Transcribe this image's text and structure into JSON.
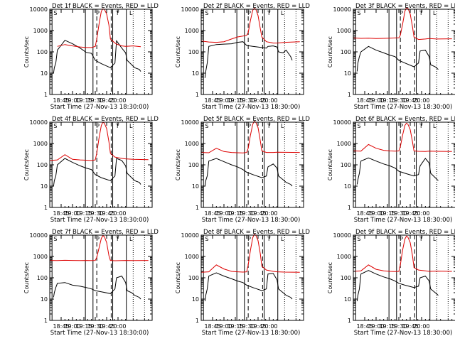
{
  "figure": {
    "xlabel_template": "Start Time (27-Nov-13 18:30:00)",
    "ylabel": "Counts/sec",
    "colors": {
      "events": "#000000",
      "lld": "#dd0000",
      "axes": "#000000"
    }
  },
  "chart_data": [
    {
      "type": "line",
      "title": "Det 1f BLACK = Events, RED = LLD",
      "letters": "S P T L",
      "xlabel": "Start Time (27-Nov-13 18:30:00)",
      "ylabel": "Counts/sec",
      "yscale": "log",
      "ylim": [
        1,
        10000
      ],
      "xticks": [
        "18:45",
        "19:00",
        "19:15",
        "19:30",
        "19:45",
        "20:00"
      ],
      "yticks": [
        "1",
        "10",
        "100",
        "1000",
        "10000"
      ],
      "series": [
        {
          "name": "Events",
          "color": "#000000",
          "x": [
            5,
            6,
            8,
            10,
            20,
            30,
            40,
            48,
            55,
            60,
            68,
            80,
            86,
            88,
            95,
            100,
            102,
            108,
            112,
            118,
            120
          ],
          "values": [
            10,
            18,
            30,
            120,
            350,
            240,
            150,
            95,
            85,
            40,
            28,
            18,
            30,
            330,
            150,
            90,
            40,
            25,
            18,
            15,
            12
          ]
        },
        {
          "name": "LLD",
          "color": "#dd0000",
          "x": [
            10,
            20,
            30,
            40,
            48,
            55,
            60,
            62,
            65,
            68,
            70,
            72,
            75,
            78,
            80,
            86,
            88,
            95,
            100,
            110,
            120
          ],
          "values": [
            180,
            220,
            190,
            170,
            160,
            160,
            180,
            400,
            2000,
            8000,
            10500,
            10000,
            6000,
            1800,
            400,
            260,
            230,
            190,
            180,
            190,
            175
          ]
        }
      ]
    },
    {
      "type": "line",
      "title": "Det 2f BLACK = Events, RED = LLD",
      "letters": "S P T L",
      "xlabel": "Start Time (27-Nov-13 18:30:00)",
      "ylabel": "Counts/sec",
      "yscale": "log",
      "ylim": [
        1,
        10000
      ],
      "xticks": [
        "18:45",
        "19:00",
        "19:15",
        "19:30",
        "19:45",
        "20:00"
      ],
      "yticks": [
        "1",
        "10",
        "100",
        "1000",
        "10000"
      ],
      "series": [
        {
          "name": "Events",
          "color": "#000000",
          "x": [
            5,
            6,
            8,
            10,
            20,
            30,
            40,
            48,
            55,
            60,
            68,
            80,
            86,
            88,
            95,
            100,
            102,
            108,
            112,
            118,
            120
          ],
          "values": [
            6,
            12,
            30,
            180,
            220,
            230,
            240,
            280,
            300,
            200,
            180,
            160,
            150,
            180,
            190,
            170,
            100,
            90,
            120,
            60,
            40
          ]
        },
        {
          "name": "LLD",
          "color": "#dd0000",
          "x": [
            0,
            10,
            20,
            30,
            40,
            48,
            55,
            60,
            62,
            65,
            68,
            70,
            72,
            75,
            78,
            80,
            86,
            95,
            100,
            110,
            130
          ],
          "values": [
            320,
            290,
            280,
            300,
            400,
            500,
            550,
            600,
            800,
            3000,
            9000,
            11000,
            10000,
            5000,
            1200,
            500,
            300,
            260,
            260,
            280,
            300
          ]
        }
      ]
    },
    {
      "type": "line",
      "title": "Det 3f BLACK = Events, RED = LLD",
      "letters": "S P T L",
      "xlabel": "Start Time (27-Nov-13 18:30:00)",
      "ylabel": "Counts/sec",
      "yscale": "log",
      "ylim": [
        1,
        10000
      ],
      "xticks": [
        "18:45",
        "19:00",
        "19:15",
        "19:30",
        "19:45",
        "20:00"
      ],
      "yticks": [
        "1",
        "10",
        "100",
        "1000",
        "10000"
      ],
      "series": [
        {
          "name": "Events",
          "color": "#000000",
          "x": [
            5,
            6,
            8,
            10,
            20,
            30,
            40,
            48,
            55,
            60,
            68,
            80,
            86,
            88,
            95,
            100,
            102,
            108,
            112
          ],
          "values": [
            12,
            30,
            60,
            100,
            180,
            120,
            90,
            70,
            60,
            40,
            30,
            20,
            30,
            110,
            120,
            60,
            25,
            20,
            15
          ]
        },
        {
          "name": "LLD",
          "color": "#dd0000",
          "x": [
            0,
            10,
            20,
            30,
            40,
            48,
            55,
            60,
            62,
            65,
            68,
            70,
            72,
            75,
            78,
            80,
            86,
            95,
            100,
            110,
            130
          ],
          "values": [
            450,
            430,
            440,
            420,
            430,
            440,
            450,
            460,
            600,
            2000,
            8000,
            12000,
            11000,
            6000,
            1500,
            500,
            380,
            400,
            420,
            400,
            410
          ]
        }
      ]
    },
    {
      "type": "line",
      "title": "Det 4f BLACK = Events, RED = LLD",
      "letters": "S P T L",
      "xlabel": "Start Time (27-Nov-13 18:30:00)",
      "ylabel": "Counts/sec",
      "yscale": "log",
      "ylim": [
        1,
        10000
      ],
      "xticks": [
        "18:45",
        "19:00",
        "19:15",
        "19:30",
        "19:45",
        "20:00"
      ],
      "yticks": [
        "1",
        "10",
        "100",
        "1000",
        "10000"
      ],
      "series": [
        {
          "name": "Events",
          "color": "#000000",
          "x": [
            5,
            6,
            8,
            10,
            20,
            30,
            40,
            48,
            55,
            60,
            68,
            80,
            86,
            88,
            95,
            100,
            102,
            108,
            112,
            118,
            120
          ],
          "values": [
            10,
            18,
            30,
            100,
            200,
            130,
            90,
            70,
            60,
            35,
            25,
            18,
            30,
            200,
            160,
            90,
            40,
            25,
            18,
            15,
            12
          ]
        },
        {
          "name": "LLD",
          "color": "#dd0000",
          "x": [
            0,
            10,
            20,
            30,
            40,
            48,
            55,
            60,
            62,
            65,
            68,
            70,
            72,
            75,
            78,
            80,
            86,
            95,
            100,
            110,
            130
          ],
          "values": [
            160,
            170,
            300,
            180,
            170,
            165,
            160,
            170,
            350,
            1800,
            7000,
            10000,
            9000,
            5000,
            1200,
            350,
            230,
            200,
            190,
            180,
            175
          ]
        }
      ]
    },
    {
      "type": "line",
      "title": "Det 5f BLACK = Events, RED = LLD",
      "letters": "S P T L",
      "xlabel": "Start Time (27-Nov-13 18:30:00)",
      "ylabel": "Counts/sec",
      "yscale": "log",
      "ylim": [
        1,
        10000
      ],
      "xticks": [
        "18:45",
        "19:00",
        "19:15",
        "19:30",
        "19:45",
        "20:00"
      ],
      "yticks": [
        "1",
        "10",
        "100",
        "1000",
        "10000"
      ],
      "series": [
        {
          "name": "Events",
          "color": "#000000",
          "x": [
            5,
            6,
            8,
            10,
            20,
            30,
            40,
            48,
            55,
            60,
            68,
            80,
            86,
            88,
            95,
            100,
            102,
            108,
            112,
            118,
            120
          ],
          "values": [
            10,
            18,
            30,
            150,
            200,
            140,
            100,
            80,
            60,
            45,
            35,
            25,
            30,
            80,
            110,
            70,
            30,
            20,
            15,
            12,
            10
          ]
        },
        {
          "name": "LLD",
          "color": "#dd0000",
          "x": [
            0,
            10,
            20,
            30,
            40,
            48,
            55,
            60,
            62,
            65,
            68,
            70,
            72,
            75,
            78,
            80,
            86,
            95,
            100,
            110,
            130
          ],
          "values": [
            380,
            370,
            600,
            420,
            380,
            370,
            360,
            380,
            600,
            2500,
            8000,
            11000,
            10000,
            5500,
            1300,
            450,
            380,
            380,
            390,
            385,
            380
          ]
        }
      ]
    },
    {
      "type": "line",
      "title": "Det 6f BLACK = Events, RED = LLD",
      "letters": "S P T L",
      "xlabel": "Start Time (27-Nov-13 18:30:00)",
      "ylabel": "Counts/sec",
      "yscale": "log",
      "ylim": [
        1,
        10000
      ],
      "xticks": [
        "18:45",
        "19:00",
        "19:15",
        "19:30",
        "19:45",
        "20:00"
      ],
      "yticks": [
        "1",
        "10",
        "100",
        "1000",
        "10000"
      ],
      "series": [
        {
          "name": "Events",
          "color": "#000000",
          "x": [
            5,
            6,
            8,
            10,
            20,
            30,
            40,
            48,
            55,
            60,
            68,
            80,
            86,
            88,
            95,
            100,
            102,
            108,
            112
          ],
          "values": [
            12,
            20,
            40,
            150,
            210,
            150,
            110,
            90,
            70,
            50,
            40,
            30,
            35,
            90,
            200,
            120,
            40,
            25,
            18
          ]
        },
        {
          "name": "LLD",
          "color": "#dd0000",
          "x": [
            0,
            10,
            20,
            30,
            40,
            48,
            55,
            60,
            62,
            65,
            68,
            70,
            72,
            75,
            78,
            80,
            86,
            95,
            100,
            110,
            130
          ],
          "values": [
            450,
            440,
            900,
            600,
            480,
            450,
            440,
            450,
            700,
            2500,
            7000,
            9000,
            8000,
            4500,
            1200,
            450,
            430,
            420,
            440,
            430,
            420
          ]
        }
      ]
    },
    {
      "type": "line",
      "title": "Det 7f BLACK = Events, RED = LLD",
      "letters": "S P T L",
      "xlabel": "Start Time (27-Nov-13 18:30:00)",
      "ylabel": "Counts/sec",
      "yscale": "log",
      "ylim": [
        1,
        10000
      ],
      "xticks": [
        "18:45",
        "19:00",
        "19:15",
        "19:30",
        "19:45",
        "20:00"
      ],
      "yticks": [
        "1",
        "10",
        "100",
        "1000",
        "10000"
      ],
      "series": [
        {
          "name": "Events",
          "color": "#000000",
          "x": [
            5,
            6,
            8,
            10,
            20,
            30,
            40,
            48,
            55,
            60,
            68,
            80,
            86,
            88,
            95,
            100,
            102,
            108,
            112,
            118,
            120
          ],
          "values": [
            12,
            20,
            35,
            55,
            60,
            45,
            40,
            35,
            30,
            25,
            22,
            18,
            30,
            100,
            120,
            60,
            25,
            20,
            15,
            12,
            10
          ]
        },
        {
          "name": "LLD",
          "color": "#dd0000",
          "x": [
            0,
            10,
            20,
            30,
            40,
            48,
            55,
            60,
            62,
            65,
            68,
            70,
            72,
            75,
            78,
            80,
            86,
            95,
            100,
            110,
            130
          ],
          "values": [
            650,
            640,
            660,
            650,
            640,
            650,
            640,
            650,
            900,
            2500,
            7000,
            9500,
            8500,
            4500,
            1100,
            650,
            630,
            640,
            650,
            640,
            650
          ]
        }
      ]
    },
    {
      "type": "line",
      "title": "Det 8f BLACK = Events, RED = LLD",
      "letters": "S P T L",
      "xlabel": "Start Time (27-Nov-13 18:30:00)",
      "ylabel": "Counts/sec",
      "yscale": "log",
      "ylim": [
        1,
        10000
      ],
      "xticks": [
        "18:45",
        "19:00",
        "19:15",
        "19:30",
        "19:45",
        "20:00"
      ],
      "yticks": [
        "1",
        "10",
        "100",
        "1000",
        "10000"
      ],
      "series": [
        {
          "name": "Events",
          "color": "#000000",
          "x": [
            5,
            6,
            8,
            10,
            20,
            30,
            40,
            48,
            55,
            60,
            68,
            80,
            86,
            88,
            95,
            100,
            102,
            108,
            112,
            118,
            120
          ],
          "values": [
            8,
            15,
            30,
            120,
            170,
            120,
            90,
            70,
            60,
            45,
            35,
            25,
            30,
            150,
            160,
            80,
            30,
            20,
            15,
            12,
            10
          ]
        },
        {
          "name": "LLD",
          "color": "#dd0000",
          "x": [
            0,
            10,
            20,
            30,
            40,
            48,
            55,
            60,
            62,
            65,
            68,
            70,
            72,
            75,
            78,
            80,
            86,
            95,
            100,
            110,
            130
          ],
          "values": [
            180,
            190,
            400,
            260,
            200,
            190,
            185,
            190,
            400,
            2000,
            7500,
            11000,
            10000,
            5500,
            1300,
            350,
            230,
            200,
            190,
            185,
            180
          ]
        }
      ]
    },
    {
      "type": "line",
      "title": "Det 9f BLACK = Events, RED = LLD",
      "letters": "S P T L",
      "xlabel": "Start Time (27-Nov-13 18:30:00)",
      "ylabel": "Counts/sec",
      "yscale": "log",
      "ylim": [
        1,
        10000
      ],
      "xticks": [
        "18:45",
        "19:00",
        "19:15",
        "19:30",
        "19:45",
        "20:00"
      ],
      "yticks": [
        "1",
        "10",
        "100",
        "1000",
        "10000"
      ],
      "series": [
        {
          "name": "Events",
          "color": "#000000",
          "x": [
            5,
            6,
            8,
            10,
            20,
            30,
            40,
            48,
            55,
            60,
            68,
            80,
            86,
            88,
            95,
            100,
            102,
            108,
            112
          ],
          "values": [
            8,
            15,
            30,
            150,
            220,
            150,
            110,
            90,
            70,
            55,
            45,
            35,
            40,
            100,
            120,
            70,
            30,
            20,
            15
          ]
        },
        {
          "name": "LLD",
          "color": "#dd0000",
          "x": [
            0,
            10,
            20,
            30,
            40,
            48,
            55,
            60,
            62,
            65,
            68,
            70,
            72,
            75,
            78,
            80,
            86,
            95,
            100,
            110,
            130
          ],
          "values": [
            200,
            210,
            400,
            250,
            210,
            200,
            195,
            200,
            400,
            2000,
            6500,
            9000,
            8000,
            4500,
            1100,
            300,
            230,
            210,
            200,
            205,
            200
          ]
        }
      ]
    }
  ]
}
